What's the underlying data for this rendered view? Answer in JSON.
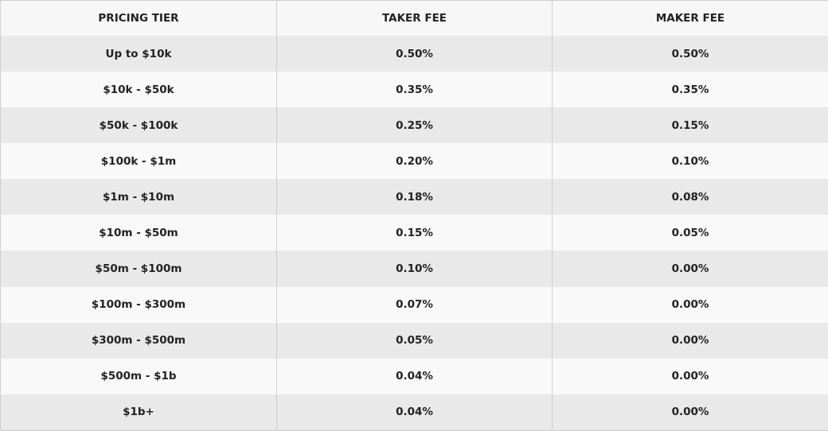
{
  "table": {
    "headers": [
      "PRICING TIER",
      "TAKER FEE",
      "MAKER FEE"
    ],
    "rows": [
      {
        "tier": "Up to $10k",
        "taker": "0.50%",
        "maker": "0.50%"
      },
      {
        "tier": "$10k - $50k",
        "taker": "0.35%",
        "maker": "0.35%"
      },
      {
        "tier": "$50k - $100k",
        "taker": "0.25%",
        "maker": "0.15%"
      },
      {
        "tier": "$100k - $1m",
        "taker": "0.20%",
        "maker": "0.10%"
      },
      {
        "tier": "$1m - $10m",
        "taker": "0.18%",
        "maker": "0.08%"
      },
      {
        "tier": "$10m - $50m",
        "taker": "0.15%",
        "maker": "0.05%"
      },
      {
        "tier": "$50m - $100m",
        "taker": "0.10%",
        "maker": "0.00%"
      },
      {
        "tier": "$100m - $300m",
        "taker": "0.07%",
        "maker": "0.00%"
      },
      {
        "tier": "$300m - $500m",
        "taker": "0.05%",
        "maker": "0.00%"
      },
      {
        "tier": "$500m - $1b",
        "taker": "0.04%",
        "maker": "0.00%"
      },
      {
        "tier": "$1b+",
        "taker": "0.04%",
        "maker": "0.00%"
      }
    ]
  }
}
